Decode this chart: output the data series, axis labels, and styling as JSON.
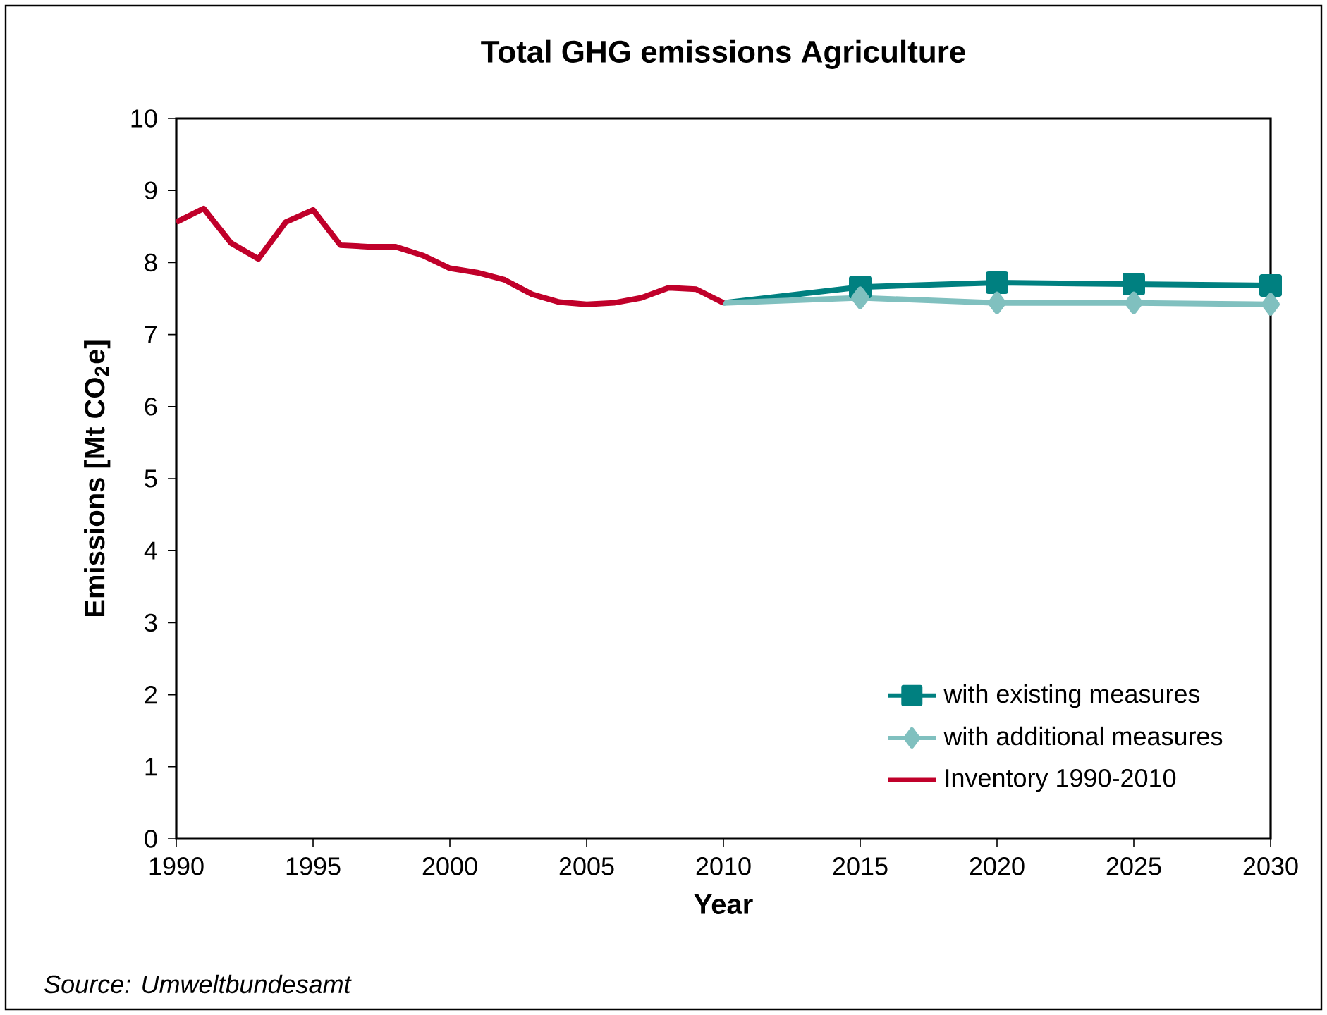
{
  "chart_data": {
    "type": "line",
    "title": "Total GHG emissions Agriculture",
    "xlabel": "Year",
    "ylabel": "Emissions [Mt CO$_{2}$e]",
    "xlim": [
      1990,
      2030
    ],
    "xticks": [
      1990,
      1995,
      2000,
      2005,
      2010,
      2015,
      2020,
      2025,
      2030
    ],
    "ylim": [
      0,
      10
    ],
    "yticks": [
      0,
      1,
      2,
      3,
      4,
      5,
      6,
      7,
      8,
      9,
      10
    ],
    "grid": false,
    "legend": "bottom right",
    "line_style": "solid",
    "annotations": [
      "Source: Umweltbundesamt"
    ],
    "series": [
      {
        "name": "with existing measures",
        "color": "#008080",
        "marker": "square",
        "x": [
          2010,
          2015,
          2020,
          2025,
          2030
        ],
        "values": [
          7.44,
          7.66,
          7.72,
          7.7,
          7.68
        ]
      },
      {
        "name": "with additional measures",
        "color": "#80c0bf",
        "marker": "diamond",
        "x": [
          2010,
          2015,
          2020,
          2025,
          2030
        ],
        "values": [
          7.44,
          7.51,
          7.44,
          7.44,
          7.42
        ]
      },
      {
        "name": "Inventory 1990-2010",
        "color": "#c0002a",
        "marker": "none",
        "x": [
          1990,
          1991,
          1992,
          1993,
          1994,
          1995,
          1996,
          1997,
          1998,
          1999,
          2000,
          2001,
          2002,
          2003,
          2004,
          2005,
          2006,
          2007,
          2008,
          2009,
          2010
        ],
        "values": [
          8.56,
          8.75,
          8.27,
          8.05,
          8.56,
          8.73,
          8.24,
          8.22,
          8.22,
          8.1,
          7.92,
          7.86,
          7.76,
          7.56,
          7.45,
          7.42,
          7.44,
          7.51,
          7.65,
          7.63,
          7.44
        ]
      }
    ]
  }
}
